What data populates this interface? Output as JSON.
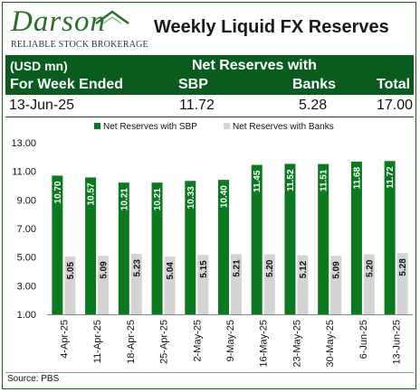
{
  "logo": {
    "name": "Darson",
    "tagline": "RELIABLE STOCK BROKERAGE"
  },
  "title": "Weekly Liquid FX Reserves",
  "table": {
    "unit": "(USD mn)",
    "group_header": "Net Reserves with",
    "week_header": "For Week Ended",
    "sbp_header": "SBP",
    "banks_header": "Banks",
    "total_header": "Total",
    "row": {
      "date": "13-Jun-25",
      "sbp": "11.72",
      "banks": "5.28",
      "total": "17.00"
    }
  },
  "source": "Source: PBS",
  "colors": {
    "sbp": "#0b7a1e",
    "banks": "#d4d4d4",
    "header_bg": "#0a5c1e"
  },
  "chart_data": {
    "type": "bar",
    "categories": [
      "4-Apr-25",
      "11-Apr-25",
      "18-Apr-25",
      "25-Apr-25",
      "2-May-25",
      "9-May-25",
      "16-May-25",
      "23-May-25",
      "30-May-25",
      "6-Jun-25",
      "13-Jun-25"
    ],
    "series": [
      {
        "name": "Net Reserves with SBP",
        "values": [
          10.7,
          10.57,
          10.21,
          10.21,
          10.33,
          10.4,
          11.45,
          11.52,
          11.51,
          11.68,
          11.72
        ]
      },
      {
        "name": "Net Reserves with Banks",
        "values": [
          5.05,
          5.09,
          5.23,
          5.04,
          5.15,
          5.21,
          5.2,
          5.12,
          5.09,
          5.2,
          5.28
        ]
      }
    ],
    "ylim": [
      1.0,
      13.0
    ],
    "yticks": [
      "1.00",
      "3.00",
      "5.00",
      "7.00",
      "9.00",
      "11.00",
      "13.00"
    ],
    "legend": "top-right",
    "grid": false
  }
}
